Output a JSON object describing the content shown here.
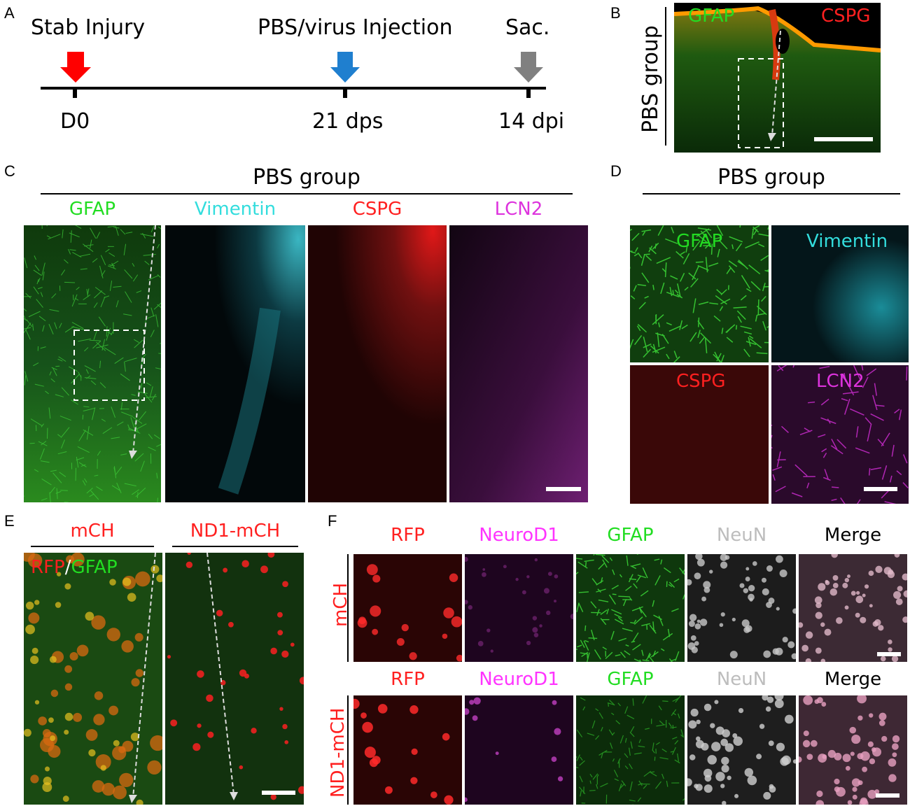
{
  "panel_labels": {
    "a": "A",
    "b": "B",
    "c": "C",
    "d": "D",
    "e": "E",
    "f": "F"
  },
  "timeline": {
    "events": [
      "Stab Injury",
      "PBS/virus Injection",
      "Sac."
    ],
    "ticks": [
      "D0",
      "21 dps",
      "14 dpi"
    ],
    "colors": {
      "stab": "#ff0000",
      "injection": "#1f7fcf",
      "sac": "#808080"
    }
  },
  "panel_b": {
    "group": "PBS group",
    "labels": [
      "GFAP",
      "CSPG"
    ]
  },
  "panel_c": {
    "group": "PBS group",
    "channels": [
      "GFAP",
      "Vimentin",
      "CSPG",
      "LCN2"
    ]
  },
  "panel_d": {
    "group": "PBS group",
    "labels": [
      "GFAP",
      "Vimentin",
      "CSPG",
      "LCN2"
    ]
  },
  "panel_e": {
    "groups": [
      "mCH",
      "ND1-mCH"
    ],
    "overlay": {
      "rfp": "RFP",
      "sep": "/",
      "gfap": "GFAP"
    }
  },
  "panel_f": {
    "rows": [
      "mCH",
      "ND1-mCH"
    ],
    "channels": [
      "RFP",
      "NeuroD1",
      "GFAP",
      "NeuN",
      "Merge"
    ]
  },
  "colors": {
    "gfap": "#22dd22",
    "vimentin": "#33dddd",
    "cspg": "#ff2020",
    "lcn2": "#dd33dd",
    "neun": "#bdbdbd",
    "merge": "#000000",
    "rfp": "#ff2020",
    "neurod1": "#ff33ff"
  }
}
